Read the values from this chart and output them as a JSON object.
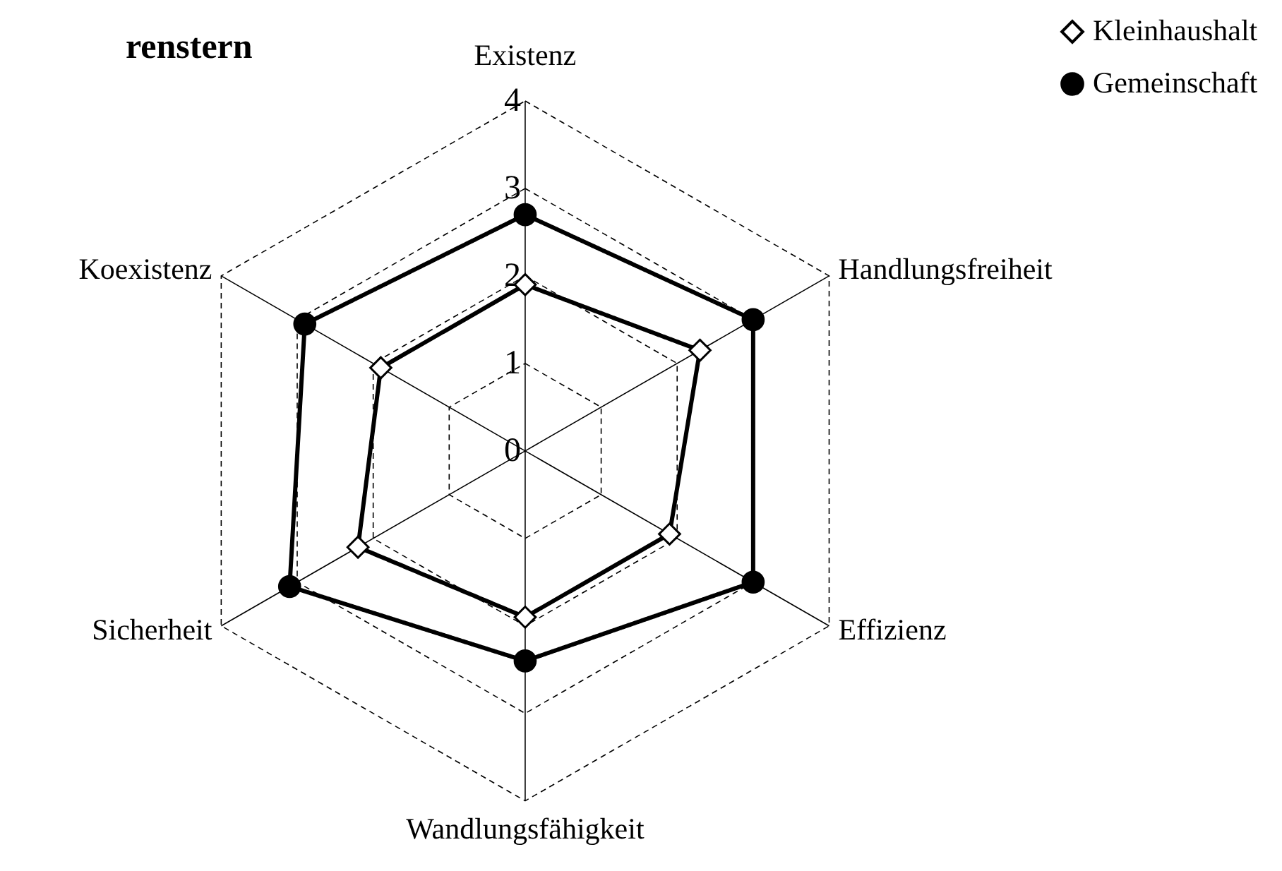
{
  "chart_data": {
    "type": "radar",
    "title": "renstern",
    "categories": [
      "Existenz",
      "Handlungsfreiheit",
      "Effizienz",
      "Wandlungsfähigkeit",
      "Sicherheit",
      "Koexistenz"
    ],
    "series": [
      {
        "name": "Kleinhaushalt",
        "color": "#000000",
        "marker": "diamond",
        "values": [
          1.9,
          2.3,
          1.9,
          1.9,
          2.2,
          1.9
        ]
      },
      {
        "name": "Gemeinschaft",
        "color": "#000000",
        "marker": "circle",
        "values": [
          2.7,
          3.0,
          3.0,
          2.4,
          3.1,
          2.9
        ]
      }
    ],
    "ylim": [
      0,
      4
    ],
    "yticks": [
      0,
      1,
      2,
      3,
      4
    ],
    "grid": true,
    "legend": "top right"
  }
}
